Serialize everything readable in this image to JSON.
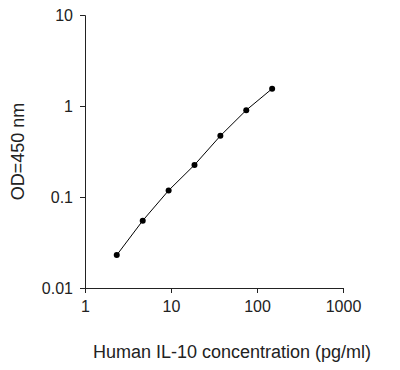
{
  "chart_data": {
    "type": "line",
    "x_label": "Human IL-10 concentration (pg/ml)",
    "y_label": "OD=450 nm",
    "x": [
      2.34,
      4.69,
      9.38,
      18.75,
      37.5,
      75,
      150
    ],
    "values": [
      0.023,
      0.055,
      0.118,
      0.225,
      0.47,
      0.9,
      1.55
    ],
    "xlim": [
      1,
      1000
    ],
    "xticks": [
      1,
      10,
      100,
      1000
    ],
    "ylim": [
      0.01,
      10
    ],
    "yticks": [
      0.01,
      0.1,
      1,
      10
    ],
    "log": true,
    "grid": false,
    "marker": "circle",
    "color": "#000000"
  }
}
